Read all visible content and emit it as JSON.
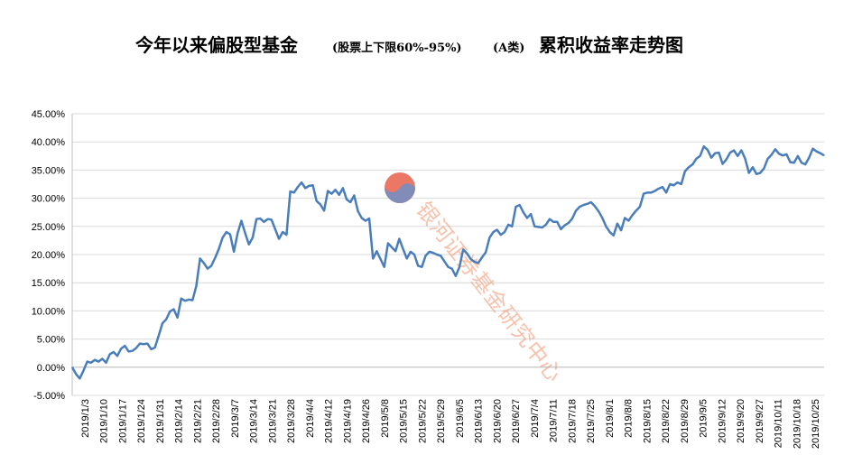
{
  "chart_data": {
    "type": "line",
    "title_main_1": "今年以来偏股型基金",
    "title_small_1": "(股票上下限60%-95%)",
    "title_small_2": "(A类)",
    "title_main_2": "累积收益率走势图",
    "ylim": [
      -5,
      45
    ],
    "yticks": [
      "-5.00%",
      "0.00%",
      "5.00%",
      "10.00%",
      "15.00%",
      "20.00%",
      "25.00%",
      "30.00%",
      "35.00%",
      "40.00%",
      "45.00%"
    ],
    "ytick_values": [
      -5,
      0,
      5,
      10,
      15,
      20,
      25,
      30,
      35,
      40,
      45
    ],
    "xtick_labels": [
      "2019/1/3",
      "2019/1/10",
      "2019/1/17",
      "2019/1/24",
      "2019/1/31",
      "2019/2/14",
      "2019/2/21",
      "2019/2/28",
      "2019/3/7",
      "2019/3/14",
      "2019/3/21",
      "2019/3/28",
      "2019/4/4",
      "2019/4/12",
      "2019/4/19",
      "2019/4/26",
      "2019/5/8",
      "2019/5/15",
      "2019/5/22",
      "2019/5/29",
      "2019/6/5",
      "2019/6/13",
      "2019/6/20",
      "2019/6/27",
      "2019/7/4",
      "2019/7/11",
      "2019/7/18",
      "2019/7/25",
      "2019/8/1",
      "2019/8/8",
      "2019/8/15",
      "2019/8/22",
      "2019/8/29",
      "2019/9/5",
      "2019/9/12",
      "2019/9/20",
      "2019/9/27",
      "2019/10/11",
      "2019/10/18",
      "2019/10/25"
    ],
    "grid": true,
    "legend": "none",
    "series": [
      {
        "color": "#4a7ebb",
        "values": [
          0.0,
          -1.2,
          -2.0,
          -0.6,
          1.0,
          0.8,
          1.3,
          1.0,
          1.5,
          0.8,
          2.3,
          2.7,
          2.0,
          3.3,
          3.8,
          2.8,
          2.9,
          3.4,
          4.2,
          4.1,
          4.2,
          3.2,
          3.5,
          5.6,
          7.8,
          8.5,
          9.9,
          10.3,
          8.8,
          12.2,
          11.8,
          12.0,
          11.9,
          14.4,
          19.3,
          18.5,
          17.5,
          18.0,
          19.4,
          21.0,
          23.0,
          24.0,
          23.6,
          20.5,
          23.8,
          26.0,
          23.8,
          21.8,
          23.0,
          26.3,
          26.4,
          25.8,
          26.3,
          26.2,
          24.5,
          22.8,
          24.0,
          23.5,
          31.2,
          31.0,
          32.0,
          32.8,
          31.8,
          32.2,
          32.3,
          29.5,
          28.9,
          27.8,
          31.3,
          30.8,
          31.5,
          30.6,
          31.8,
          29.8,
          29.3,
          30.5,
          27.7,
          26.5,
          26.0,
          26.4,
          19.3,
          20.6,
          19.2,
          17.8,
          22.0,
          21.3,
          20.6,
          22.8,
          21.0,
          19.3,
          20.5,
          20.0,
          18.0,
          17.8,
          19.8,
          20.5,
          20.3,
          20.0,
          19.8,
          18.8,
          17.8,
          17.5,
          16.2,
          17.8,
          20.9,
          20.2,
          19.2,
          18.7,
          18.5,
          19.5,
          20.4,
          23.0,
          24.0,
          24.4,
          23.5,
          24.0,
          25.3,
          25.0,
          28.5,
          28.8,
          27.5,
          26.5,
          27.2,
          25.0,
          24.9,
          24.8,
          25.3,
          26.3,
          25.8,
          25.8,
          24.5,
          25.2,
          25.6,
          26.4,
          27.8,
          28.5,
          28.8,
          29.0,
          29.3,
          28.6,
          27.7,
          26.5,
          25.0,
          24.0,
          23.4,
          25.5,
          24.3,
          26.5,
          26.0,
          27.0,
          27.8,
          28.5,
          30.8,
          31.0,
          31.0,
          31.3,
          31.7,
          32.0,
          31.0,
          32.5,
          32.3,
          32.8,
          32.5,
          34.8,
          35.5,
          36.0,
          37.0,
          37.5,
          39.2,
          38.6,
          37.2,
          38.0,
          38.1,
          36.1,
          36.9,
          38.1,
          38.5,
          37.5,
          38.5,
          37.0,
          34.5,
          35.5,
          34.3,
          34.5,
          35.3,
          37.0,
          37.7,
          38.7,
          37.9,
          37.6,
          37.8,
          36.4,
          36.3,
          37.5,
          36.3,
          36.0,
          37.2,
          38.8,
          38.3,
          38.0,
          37.6
        ]
      }
    ],
    "watermark": "银河证券基金研究中心"
  }
}
